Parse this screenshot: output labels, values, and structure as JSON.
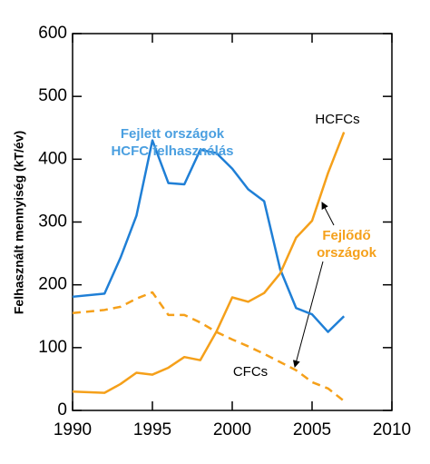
{
  "chart_data": {
    "type": "line",
    "y_label": "Felhasznált mennyiség (kT/év)",
    "x": [
      1990,
      1992,
      1993,
      1994,
      1995,
      1996,
      1997,
      1998,
      1999,
      2000,
      2001,
      2002,
      2003,
      2004,
      2005,
      2006,
      2007
    ],
    "series": [
      {
        "color": "#1f7fd6",
        "dash": false,
        "values": [
          181,
          186,
          243,
          310,
          430,
          362,
          360,
          415,
          410,
          385,
          352,
          333,
          225,
          163,
          153,
          125,
          150
        ]
      },
      {
        "color": "#f5a01a",
        "dash": false,
        "values": [
          30,
          28,
          42,
          60,
          57,
          68,
          85,
          80,
          125,
          180,
          173,
          187,
          218,
          275,
          302,
          378,
          443
        ]
      },
      {
        "color": "#f5a01a",
        "dash": true,
        "values": [
          155,
          160,
          165,
          178,
          188,
          152,
          152,
          140,
          125,
          113,
          102,
          90,
          77,
          64,
          45,
          35,
          15
        ]
      }
    ],
    "xlim": [
      1990,
      2010
    ],
    "xticks": [
      1990,
      1995,
      2000,
      2005,
      2010
    ],
    "ylim": [
      0,
      600
    ],
    "yticks": [
      0,
      100,
      200,
      300,
      400,
      500,
      600
    ],
    "annotations": [
      {
        "lines": [
          "Fejlett országok",
          "HCFC felhasználás"
        ],
        "color": "#4a9fe0"
      },
      {
        "lines": [
          "HCFCs"
        ],
        "color": "#000000"
      },
      {
        "lines": [
          "Fejlődő",
          "országok"
        ],
        "color": "#f5a01a"
      },
      {
        "lines": [
          "CFCs"
        ],
        "color": "#000000"
      }
    ]
  }
}
